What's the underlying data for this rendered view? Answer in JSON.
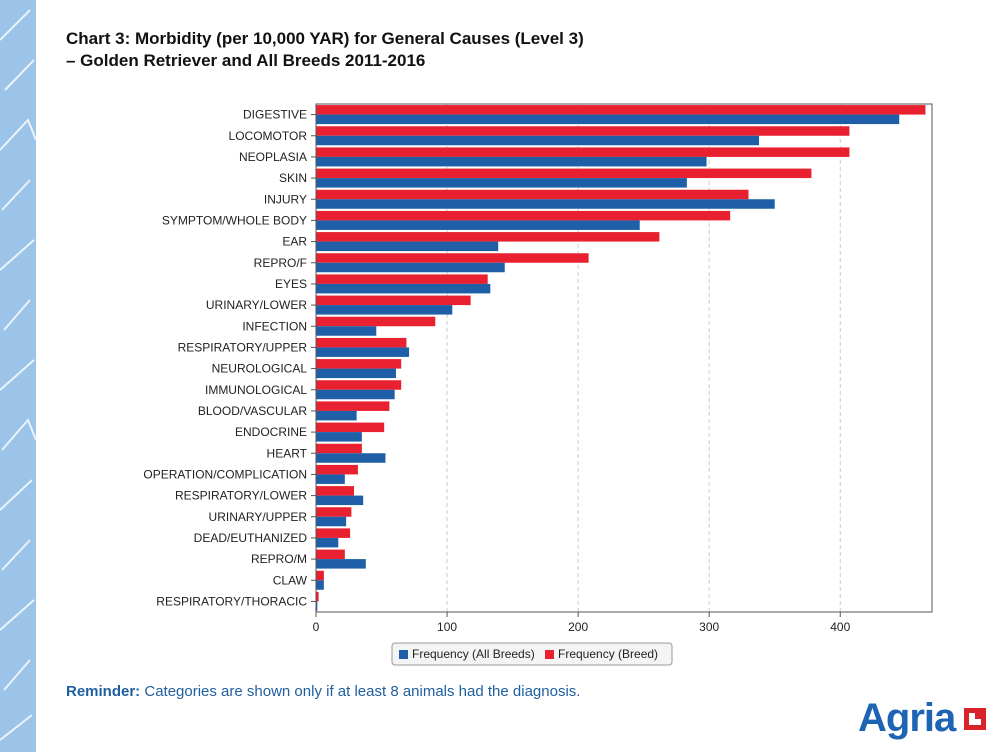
{
  "title": {
    "line1": "Chart 3: Morbidity (per 10,000 YAR) for General Causes (Level 3)",
    "line2": "–  Golden Retriever and All Breeds 2011-2016"
  },
  "reminder": {
    "label": "Reminder:",
    "text": " Categories are shown only if at least 8 animals had the diagnosis."
  },
  "logo": {
    "text": "Agria"
  },
  "colors": {
    "all_breeds": "#1f5fa8",
    "breed": "#e8202f"
  },
  "chart_data": {
    "type": "bar",
    "orientation": "horizontal",
    "categories": [
      "DIGESTIVE",
      "LOCOMOTOR",
      "NEOPLASIA",
      "SKIN",
      "INJURY",
      "SYMPTOM/WHOLE BODY",
      "EAR",
      "REPRO/F",
      "EYES",
      "URINARY/LOWER",
      "INFECTION",
      "RESPIRATORY/UPPER",
      "NEUROLOGICAL",
      "IMMUNOLOGICAL",
      "BLOOD/VASCULAR",
      "ENDOCRINE",
      "HEART",
      "OPERATION/COMPLICATION",
      "RESPIRATORY/LOWER",
      "URINARY/UPPER",
      "DEAD/EUTHANIZED",
      "REPRO/M",
      "CLAW",
      "RESPIRATORY/THORACIC"
    ],
    "series": [
      {
        "name": "Frequency (Breed)",
        "values": [
          465,
          407,
          407,
          378,
          330,
          316,
          262,
          208,
          131,
          118,
          91,
          69,
          65,
          65,
          56,
          52,
          35,
          32,
          29,
          27,
          26,
          22,
          6,
          2
        ]
      },
      {
        "name": "Frequency (All Breeds)",
        "values": [
          445,
          338,
          298,
          283,
          350,
          247,
          139,
          144,
          133,
          104,
          46,
          71,
          61,
          60,
          31,
          35,
          53,
          22,
          36,
          23,
          17,
          38,
          6,
          1
        ]
      }
    ],
    "xlim": [
      0,
      470
    ],
    "xticks": [
      0,
      100,
      200,
      300,
      400
    ],
    "xlabel": "",
    "ylabel": "",
    "legend_position": "bottom",
    "legend": [
      "Frequency (All Breeds)",
      "Frequency (Breed)"
    ],
    "grid": "vertical dashed"
  }
}
